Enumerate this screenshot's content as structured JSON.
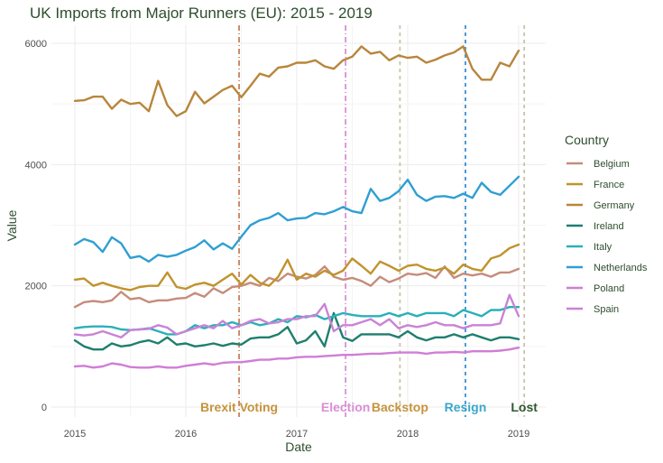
{
  "chart_data": {
    "type": "line",
    "title": "UK Imports from Major Runners (EU): 2015 - 2019",
    "xlabel": "Date",
    "ylabel": "Value",
    "legend_title": "Country",
    "legend_position": "right",
    "grid": true,
    "xlim": [
      2015.0,
      2019.1
    ],
    "ylim": [
      0,
      6200
    ],
    "x_ticks": [
      2015,
      2016,
      2017,
      2018,
      2019
    ],
    "y_ticks": [
      0,
      2000,
      4000,
      6000
    ],
    "x": [
      2015.0,
      2015.083,
      2015.167,
      2015.25,
      2015.333,
      2015.417,
      2015.5,
      2015.583,
      2015.667,
      2015.75,
      2015.833,
      2015.917,
      2016.0,
      2016.083,
      2016.167,
      2016.25,
      2016.333,
      2016.417,
      2016.5,
      2016.583,
      2016.667,
      2016.75,
      2016.833,
      2016.917,
      2017.0,
      2017.083,
      2017.167,
      2017.25,
      2017.333,
      2017.417,
      2017.5,
      2017.583,
      2017.667,
      2017.75,
      2017.833,
      2017.917,
      2018.0,
      2018.083,
      2018.167,
      2018.25,
      2018.333,
      2018.417,
      2018.5,
      2018.583,
      2018.667,
      2018.75,
      2018.833,
      2018.917,
      2019.0
    ],
    "series": [
      {
        "name": "Belgium",
        "color": "#c68c7a",
        "values": [
          1650,
          1730,
          1750,
          1730,
          1760,
          1900,
          1780,
          1800,
          1730,
          1760,
          1760,
          1790,
          1800,
          1880,
          1820,
          1960,
          1880,
          1980,
          2000,
          2050,
          2000,
          2130,
          2080,
          2200,
          2150,
          2120,
          2180,
          2320,
          2150,
          2100,
          2130,
          2080,
          2000,
          2150,
          2060,
          2120,
          2200,
          2180,
          2210,
          2130,
          2320,
          2130,
          2200,
          2170,
          2200,
          2150,
          2220,
          2220,
          2280
        ]
      },
      {
        "name": "France",
        "color": "#c0932d",
        "values": [
          2100,
          2120,
          2000,
          2050,
          2000,
          1960,
          1930,
          1980,
          2000,
          2000,
          2220,
          1980,
          1950,
          2020,
          2050,
          2000,
          2100,
          2200,
          2020,
          2180,
          2050,
          2000,
          2150,
          2430,
          2100,
          2200,
          2150,
          2250,
          2180,
          2250,
          2450,
          2330,
          2200,
          2400,
          2330,
          2250,
          2330,
          2350,
          2280,
          2250,
          2300,
          2200,
          2350,
          2280,
          2250,
          2450,
          2500,
          2620,
          2680
        ]
      },
      {
        "name": "Germany",
        "color": "#b8863b",
        "values": [
          5050,
          5060,
          5120,
          5120,
          4920,
          5070,
          5000,
          5020,
          4880,
          5380,
          4980,
          4800,
          4880,
          5200,
          5010,
          5120,
          5230,
          5300,
          5110,
          5300,
          5500,
          5450,
          5600,
          5620,
          5680,
          5680,
          5720,
          5620,
          5580,
          5720,
          5780,
          5950,
          5830,
          5860,
          5720,
          5800,
          5760,
          5780,
          5680,
          5730,
          5800,
          5850,
          5950,
          5580,
          5400,
          5400,
          5680,
          5620,
          5880
        ]
      },
      {
        "name": "Ireland",
        "color": "#1f7f6e",
        "values": [
          1100,
          1000,
          950,
          950,
          1050,
          1000,
          1020,
          1070,
          1100,
          1050,
          1150,
          1030,
          1050,
          1000,
          1020,
          1050,
          1010,
          1050,
          1030,
          1130,
          1150,
          1150,
          1200,
          1320,
          1050,
          1100,
          1250,
          1000,
          1550,
          1150,
          1090,
          1200,
          1200,
          1200,
          1200,
          1150,
          1250,
          1150,
          1100,
          1150,
          1150,
          1200,
          1150,
          1200,
          1150,
          1100,
          1150,
          1150,
          1120
        ]
      },
      {
        "name": "Italy",
        "color": "#2ab0b8",
        "values": [
          1300,
          1320,
          1330,
          1330,
          1320,
          1280,
          1270,
          1280,
          1300,
          1250,
          1200,
          1200,
          1250,
          1350,
          1300,
          1350,
          1350,
          1400,
          1350,
          1400,
          1350,
          1380,
          1450,
          1400,
          1500,
          1480,
          1520,
          1450,
          1500,
          1550,
          1520,
          1500,
          1500,
          1500,
          1550,
          1500,
          1550,
          1500,
          1550,
          1550,
          1550,
          1500,
          1600,
          1550,
          1500,
          1600,
          1600,
          1650,
          1650
        ]
      },
      {
        "name": "Netherlands",
        "color": "#2f9fd2",
        "values": [
          2680,
          2770,
          2720,
          2560,
          2800,
          2700,
          2460,
          2490,
          2400,
          2510,
          2480,
          2510,
          2580,
          2640,
          2750,
          2600,
          2700,
          2610,
          2810,
          3000,
          3080,
          3120,
          3200,
          3080,
          3110,
          3120,
          3200,
          3180,
          3230,
          3300,
          3230,
          3200,
          3600,
          3400,
          3450,
          3560,
          3750,
          3500,
          3400,
          3470,
          3480,
          3450,
          3520,
          3450,
          3700,
          3550,
          3500,
          3650,
          3800
        ]
      },
      {
        "name": "Poland",
        "color": "#d07ed5",
        "values": [
          670,
          680,
          650,
          670,
          720,
          700,
          660,
          650,
          650,
          670,
          650,
          650,
          680,
          700,
          720,
          700,
          730,
          740,
          740,
          760,
          780,
          780,
          800,
          800,
          820,
          830,
          830,
          840,
          850,
          860,
          860,
          870,
          880,
          880,
          890,
          900,
          900,
          900,
          880,
          900,
          900,
          910,
          900,
          920,
          920,
          920,
          930,
          950,
          980
        ]
      },
      {
        "name": "Spain",
        "color": "#c983d6",
        "values": [
          1200,
          1180,
          1200,
          1250,
          1200,
          1150,
          1270,
          1280,
          1290,
          1350,
          1310,
          1200,
          1250,
          1300,
          1350,
          1300,
          1420,
          1300,
          1350,
          1420,
          1450,
          1380,
          1400,
          1450,
          1450,
          1500,
          1500,
          1700,
          1250,
          1350,
          1350,
          1400,
          1450,
          1350,
          1450,
          1300,
          1350,
          1320,
          1350,
          1400,
          1350,
          1350,
          1300,
          1350,
          1350,
          1350,
          1380,
          1850,
          1500
        ]
      }
    ],
    "annotations": [
      {
        "label": "Brexit Voting",
        "x": 2016.48,
        "color": "#c8805a",
        "label_color": "#c5943d",
        "dash": "6,3,1,3"
      },
      {
        "label": "Election",
        "x": 2017.44,
        "color": "#d98fd6",
        "label_color": "#d98fd6",
        "dash": "6,3,1,3"
      },
      {
        "label": "Backstop",
        "x": 2017.93,
        "color": "#c9c3a8",
        "label_color": "#c5943d",
        "dash": "4,4"
      },
      {
        "label": "Resign",
        "x": 2018.52,
        "color": "#3a8fd1",
        "label_color": "#3aa7c9",
        "dash": "4,4"
      },
      {
        "label": "Lost",
        "x": 2019.05,
        "color": "#c9c3a8",
        "label_color": "#2e5a2e",
        "dash": "4,4"
      }
    ]
  }
}
